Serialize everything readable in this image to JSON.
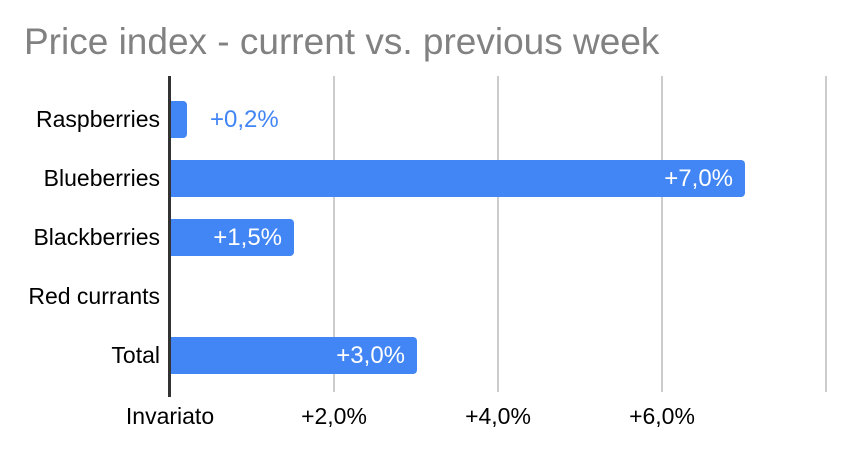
{
  "chart_data": {
    "type": "bar",
    "orientation": "horizontal",
    "title": "Price index - current vs. previous week",
    "categories": [
      "Raspberries",
      "Blueberries",
      "Blackberries",
      "Red currants",
      "Total"
    ],
    "values": [
      0.2,
      7.0,
      1.5,
      0,
      3.0
    ],
    "value_labels": [
      "+0,2%",
      "+7,0%",
      "+1,5%",
      "",
      "+3,0%"
    ],
    "value_label_position": [
      "outside",
      "inside",
      "inside",
      "none",
      "inside"
    ],
    "x_axis": {
      "ticks": [
        0,
        2,
        4,
        6,
        8
      ],
      "tick_labels": [
        "Invariato",
        "+2,0%",
        "+4,0%",
        "+6,0%",
        ""
      ],
      "range": [
        0,
        8
      ]
    },
    "ylabel": "",
    "xlabel": "",
    "grid": true,
    "legend": "none"
  },
  "colors": {
    "bar": "#4285f4",
    "title_text": "#818181",
    "category_text": "#000000",
    "axis_tick_text": "#000000",
    "value_inside_text": "#ffffff",
    "value_outside_text": "#4285f4",
    "gridline": "#cccccc",
    "zero_axis": "#333333",
    "background": "#ffffff"
  }
}
